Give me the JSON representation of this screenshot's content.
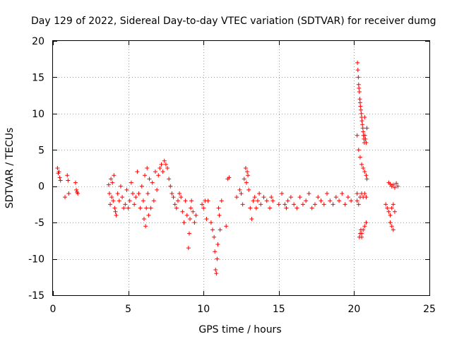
{
  "chart_data": {
    "type": "scatter",
    "title": "Day 129 of 2022, Sidereal Day-to-day VTEC variation (SDTVAR) for receiver dumg",
    "xlabel": "GPS time / hours",
    "ylabel": "SDTVAR / TECUs",
    "xlim": [
      0,
      25
    ],
    "ylim": [
      -15,
      20
    ],
    "xticks": [
      0,
      5,
      10,
      15,
      20,
      25
    ],
    "yticks": [
      -15,
      -10,
      -5,
      0,
      5,
      10,
      15,
      20
    ],
    "grid": true,
    "marker": "+",
    "color": "#ff0000",
    "series": [
      {
        "name": "SDTVAR",
        "x": [
          0.3,
          0.35,
          0.4,
          0.45,
          0.5,
          0.8,
          0.95,
          1.0,
          1.05,
          1.5,
          1.55,
          1.6,
          1.65,
          3.7,
          3.75,
          3.8,
          3.85,
          3.9,
          3.95,
          4.0,
          4.05,
          4.1,
          4.15,
          4.2,
          4.3,
          4.4,
          4.5,
          4.6,
          4.7,
          4.8,
          4.9,
          5.0,
          5.1,
          5.2,
          5.3,
          5.4,
          5.5,
          5.6,
          5.7,
          5.8,
          5.9,
          6.0,
          6.05,
          6.1,
          6.15,
          6.2,
          6.25,
          6.3,
          6.35,
          6.4,
          6.5,
          6.6,
          6.7,
          6.8,
          6.9,
          7.0,
          7.1,
          7.2,
          7.3,
          7.4,
          7.5,
          7.6,
          7.7,
          7.8,
          7.9,
          8.0,
          8.1,
          8.2,
          8.3,
          8.4,
          8.5,
          8.6,
          8.7,
          8.8,
          8.9,
          9.0,
          9.05,
          9.1,
          9.15,
          9.2,
          9.3,
          9.4,
          9.5,
          9.9,
          10.0,
          10.1,
          10.2,
          10.3,
          10.5,
          10.6,
          10.7,
          10.75,
          10.8,
          10.85,
          10.9,
          10.95,
          11.0,
          11.05,
          11.1,
          11.2,
          11.5,
          11.6,
          11.7,
          12.2,
          12.4,
          12.5,
          12.6,
          12.7,
          12.8,
          12.85,
          12.9,
          12.95,
          13.0,
          13.1,
          13.2,
          13.3,
          13.4,
          13.5,
          13.6,
          13.7,
          13.8,
          14.0,
          14.2,
          14.4,
          14.5,
          14.6,
          15.0,
          15.2,
          15.4,
          15.5,
          15.6,
          15.8,
          16.0,
          16.2,
          16.4,
          16.6,
          16.8,
          17.0,
          17.2,
          17.4,
          17.6,
          17.8,
          18.0,
          18.2,
          18.4,
          18.6,
          18.8,
          19.0,
          19.2,
          19.4,
          19.6,
          19.8,
          20.2,
          20.22,
          20.25,
          20.28,
          20.3,
          20.32,
          20.35,
          20.38,
          20.4,
          20.42,
          20.45,
          20.48,
          20.5,
          20.52,
          20.55,
          20.58,
          20.6,
          20.62,
          20.65,
          20.68,
          20.7,
          20.72,
          20.75,
          20.8,
          20.85,
          20.2,
          20.3,
          20.4,
          20.5,
          20.6,
          20.7,
          20.8,
          20.85,
          20.2,
          20.3,
          20.4,
          20.5,
          20.6,
          20.7,
          20.8,
          20.5,
          20.6,
          20.7,
          20.8,
          20.35,
          20.4,
          20.45,
          20.5,
          22.1,
          22.2,
          22.3,
          22.4,
          22.5,
          22.6,
          22.7,
          22.3,
          22.4,
          22.5,
          22.6,
          22.7,
          22.8,
          22.9,
          22.4,
          22.5,
          22.6
        ],
        "y": [
          2.5,
          1.8,
          2.0,
          1.2,
          0.8,
          -1.5,
          1.5,
          0.8,
          -1.0,
          0.5,
          -0.5,
          -0.8,
          -1.0,
          0.2,
          -1.0,
          -2.5,
          1.0,
          -1.5,
          0.5,
          -2.0,
          1.5,
          -3.0,
          -3.5,
          -4.0,
          -1.0,
          -2.0,
          0.0,
          -1.5,
          -3.0,
          -2.5,
          -0.5,
          -3.0,
          -2.0,
          0.5,
          -1.0,
          -2.5,
          -1.5,
          2.0,
          -1.0,
          -3.0,
          0.0,
          -2.0,
          -4.5,
          1.5,
          -5.5,
          -3.0,
          2.5,
          -1.0,
          -4.0,
          1.0,
          -3.0,
          0.5,
          -2.0,
          2.0,
          -0.5,
          1.5,
          2.5,
          3.0,
          2.0,
          3.5,
          3.0,
          2.5,
          1.0,
          0.0,
          -1.0,
          -1.5,
          -2.5,
          -3.0,
          -2.0,
          -1.0,
          -1.5,
          -3.5,
          -5.0,
          -2.0,
          -4.0,
          -8.5,
          -6.5,
          -4.5,
          -3.0,
          -2.0,
          -3.5,
          -5.0,
          -4.0,
          -2.5,
          -3.0,
          -2.0,
          -4.5,
          -2.0,
          -5.0,
          -6.0,
          -7.0,
          -9.0,
          -11.5,
          -12.0,
          -10.0,
          -8.0,
          -3.0,
          -4.0,
          -6.0,
          -2.0,
          -5.5,
          1.0,
          1.2,
          -1.5,
          -0.5,
          -1.0,
          -2.5,
          1.0,
          2.5,
          0.5,
          2.0,
          1.5,
          -0.5,
          -3.0,
          -4.5,
          -2.0,
          -1.5,
          -3.0,
          -2.0,
          -1.0,
          -2.5,
          -1.5,
          -2.0,
          -3.0,
          -1.5,
          -2.0,
          -2.5,
          -1.0,
          -2.5,
          -3.0,
          -2.0,
          -1.5,
          -2.5,
          -3.0,
          -1.5,
          -2.5,
          -2.0,
          -1.0,
          -3.0,
          -2.5,
          -1.5,
          -2.0,
          -2.5,
          -1.0,
          -2.0,
          -2.5,
          -1.5,
          -2.0,
          -1.0,
          -2.5,
          -1.5,
          -2.0,
          -1.0,
          17.0,
          16.0,
          15.0,
          14.0,
          13.5,
          13.0,
          12.0,
          11.5,
          11.0,
          10.5,
          10.0,
          9.5,
          9.0,
          8.5,
          8.0,
          7.5,
          7.0,
          6.5,
          6.0,
          9.5,
          7.0,
          6.5,
          6.0,
          8.0,
          7.0,
          5.0,
          4.0,
          3.0,
          2.5,
          2.0,
          1.5,
          1.0,
          -2.0,
          -2.5,
          -1.5,
          -1.0,
          -1.5,
          -1.0,
          -1.5,
          -6.5,
          -6.0,
          -5.5,
          -5.0,
          -7.0,
          -6.5,
          -6.0,
          -7.0,
          -2.5,
          -3.0,
          -3.5,
          -4.0,
          -3.0,
          -2.5,
          -3.5,
          0.5,
          0.3,
          0.0,
          0.2,
          -0.2,
          0.4,
          0.0,
          -5.0,
          -5.5,
          -6.0
        ]
      }
    ]
  }
}
